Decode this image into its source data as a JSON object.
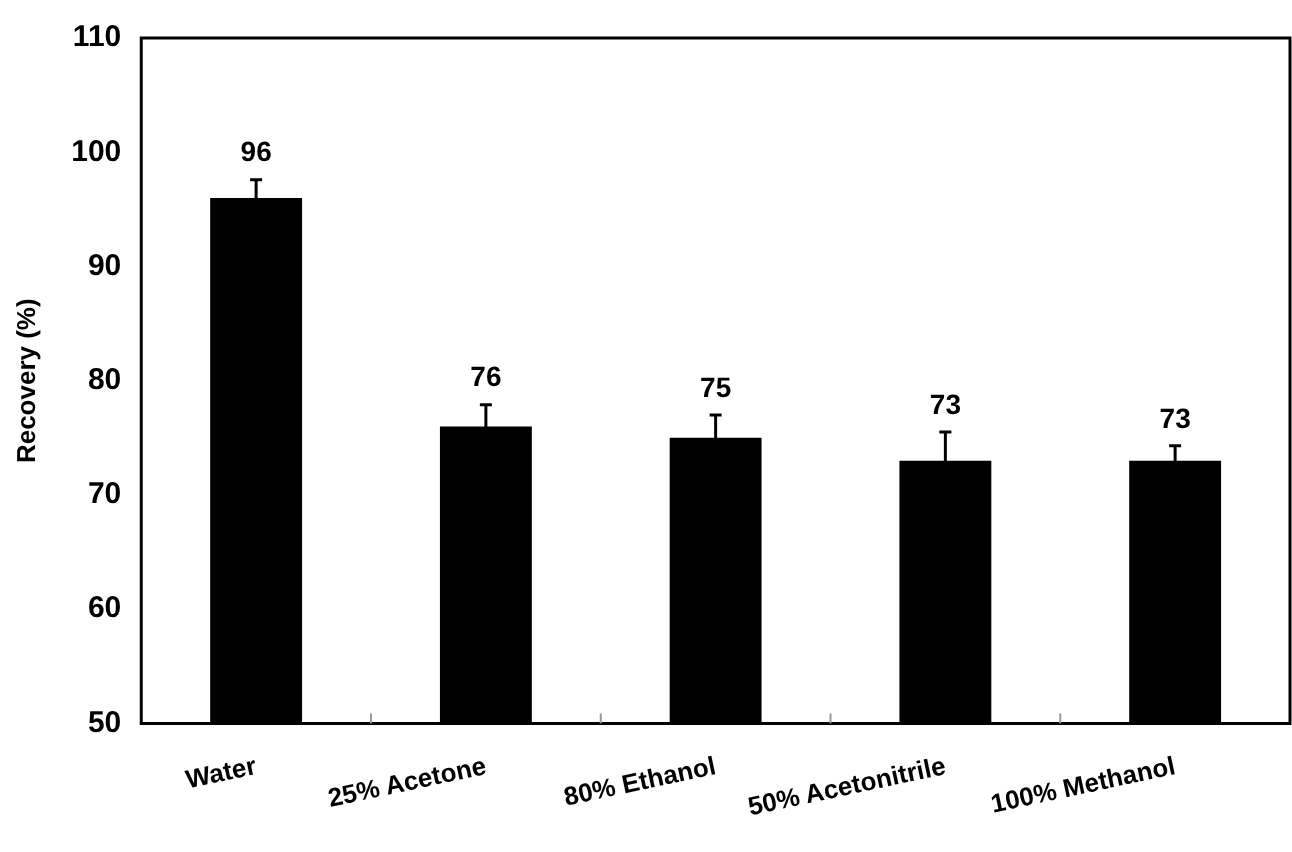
{
  "chart_data": {
    "type": "bar",
    "ylabel": "Recovery (%)",
    "categories": [
      "Water",
      "25% Acetone",
      "80% Ethanol",
      "50% Acetonitrile",
      "100% Methanol"
    ],
    "values": [
      96,
      76,
      75,
      73,
      73
    ],
    "color": "#000000",
    "errors": [
      1.6,
      1.9,
      2.0,
      2.5,
      1.3
    ],
    "ylim": [
      50,
      110
    ],
    "yticks": [
      50,
      60,
      70,
      80,
      90,
      100,
      110
    ],
    "grid": false,
    "legend": false,
    "data_labels": true
  }
}
